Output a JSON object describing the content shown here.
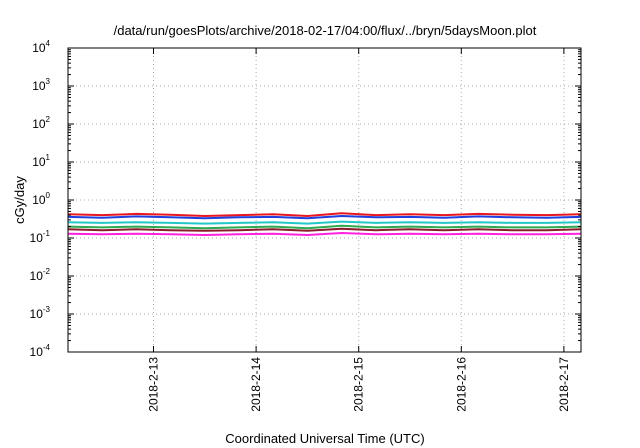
{
  "chart_data": {
    "type": "line",
    "title": "/data/run/goesPlots/archive/2018-02-17/04:00/flux/../bryn/5daysMoon.plot",
    "xlabel": "Coordinated Universal Time (UTC)",
    "ylabel": "cGy/day",
    "yscale": "log",
    "ylim": [
      0.0001,
      10000
    ],
    "xlim": [
      "2018-02-12 04:00",
      "2018-02-17 04:00"
    ],
    "grid": true,
    "x_ticks": [
      {
        "label": "2018-2-13",
        "value": "2018-02-13 00:00"
      },
      {
        "label": "2018-2-14",
        "value": "2018-02-14 00:00"
      },
      {
        "label": "2018-2-15",
        "value": "2018-02-15 00:00"
      },
      {
        "label": "2018-2-16",
        "value": "2018-02-16 00:00"
      },
      {
        "label": "2018-2-17",
        "value": "2018-02-17 00:00"
      }
    ],
    "y_ticks": [
      {
        "base": "10",
        "exp": "-4",
        "value": 0.0001
      },
      {
        "base": "10",
        "exp": "-3",
        "value": 0.001
      },
      {
        "base": "10",
        "exp": "-2",
        "value": 0.01
      },
      {
        "base": "10",
        "exp": "-1",
        "value": 0.1
      },
      {
        "base": "10",
        "exp": "0",
        "value": 1
      },
      {
        "base": "10",
        "exp": "1",
        "value": 10
      },
      {
        "base": "10",
        "exp": "2",
        "value": 100
      },
      {
        "base": "10",
        "exp": "3",
        "value": 1000
      },
      {
        "base": "10",
        "exp": "4",
        "value": 10000
      }
    ],
    "series": [
      {
        "color": "#e8161e",
        "x": [
          "2018-02-12 04:00",
          "2018-02-12 12:00",
          "2018-02-12 20:00",
          "2018-02-13 04:00",
          "2018-02-13 12:00",
          "2018-02-13 20:00",
          "2018-02-14 04:00",
          "2018-02-14 12:00",
          "2018-02-14 20:00",
          "2018-02-15 04:00",
          "2018-02-15 12:00",
          "2018-02-15 20:00",
          "2018-02-16 04:00",
          "2018-02-16 12:00",
          "2018-02-16 20:00",
          "2018-02-17 04:00"
        ],
        "values": [
          0.42,
          0.4,
          0.43,
          0.41,
          0.38,
          0.4,
          0.42,
          0.38,
          0.45,
          0.4,
          0.42,
          0.4,
          0.43,
          0.41,
          0.4,
          0.42
        ]
      },
      {
        "color": "#1f3fe0",
        "x": [
          "2018-02-12 04:00",
          "2018-02-12 12:00",
          "2018-02-12 20:00",
          "2018-02-13 04:00",
          "2018-02-13 12:00",
          "2018-02-13 20:00",
          "2018-02-14 04:00",
          "2018-02-14 12:00",
          "2018-02-14 20:00",
          "2018-02-15 04:00",
          "2018-02-15 12:00",
          "2018-02-15 20:00",
          "2018-02-16 04:00",
          "2018-02-16 12:00",
          "2018-02-16 20:00",
          "2018-02-17 04:00"
        ],
        "values": [
          0.36,
          0.34,
          0.37,
          0.35,
          0.33,
          0.35,
          0.36,
          0.33,
          0.38,
          0.35,
          0.36,
          0.34,
          0.37,
          0.35,
          0.34,
          0.36
        ]
      },
      {
        "color": "#22c8c8",
        "x": [
          "2018-02-12 04:00",
          "2018-02-12 12:00",
          "2018-02-12 20:00",
          "2018-02-13 04:00",
          "2018-02-13 12:00",
          "2018-02-13 20:00",
          "2018-02-14 04:00",
          "2018-02-14 12:00",
          "2018-02-14 20:00",
          "2018-02-15 04:00",
          "2018-02-15 12:00",
          "2018-02-15 20:00",
          "2018-02-16 04:00",
          "2018-02-16 12:00",
          "2018-02-16 20:00",
          "2018-02-17 04:00"
        ],
        "values": [
          0.26,
          0.25,
          0.26,
          0.25,
          0.24,
          0.25,
          0.26,
          0.24,
          0.27,
          0.25,
          0.26,
          0.25,
          0.26,
          0.25,
          0.25,
          0.26
        ]
      },
      {
        "color": "#2fa84f",
        "x": [
          "2018-02-12 04:00",
          "2018-02-12 12:00",
          "2018-02-12 20:00",
          "2018-02-13 04:00",
          "2018-02-13 12:00",
          "2018-02-13 20:00",
          "2018-02-14 04:00",
          "2018-02-14 12:00",
          "2018-02-14 20:00",
          "2018-02-15 04:00",
          "2018-02-15 12:00",
          "2018-02-15 20:00",
          "2018-02-16 04:00",
          "2018-02-16 12:00",
          "2018-02-16 20:00",
          "2018-02-17 04:00"
        ],
        "values": [
          0.2,
          0.19,
          0.2,
          0.19,
          0.18,
          0.19,
          0.2,
          0.18,
          0.21,
          0.19,
          0.2,
          0.19,
          0.2,
          0.19,
          0.19,
          0.2
        ]
      },
      {
        "color": "#8b1a2a",
        "x": [
          "2018-02-12 04:00",
          "2018-02-12 12:00",
          "2018-02-12 20:00",
          "2018-02-13 04:00",
          "2018-02-13 12:00",
          "2018-02-13 20:00",
          "2018-02-14 04:00",
          "2018-02-14 12:00",
          "2018-02-14 20:00",
          "2018-02-15 04:00",
          "2018-02-15 12:00",
          "2018-02-15 20:00",
          "2018-02-16 04:00",
          "2018-02-16 12:00",
          "2018-02-16 20:00",
          "2018-02-17 04:00"
        ],
        "values": [
          0.17,
          0.16,
          0.17,
          0.16,
          0.155,
          0.16,
          0.17,
          0.155,
          0.175,
          0.16,
          0.17,
          0.16,
          0.17,
          0.16,
          0.16,
          0.17
        ]
      },
      {
        "color": "#ff22dd",
        "x": [
          "2018-02-12 04:00",
          "2018-02-12 12:00",
          "2018-02-12 20:00",
          "2018-02-13 04:00",
          "2018-02-13 12:00",
          "2018-02-13 20:00",
          "2018-02-14 04:00",
          "2018-02-14 12:00",
          "2018-02-14 20:00",
          "2018-02-15 04:00",
          "2018-02-15 12:00",
          "2018-02-15 20:00",
          "2018-02-16 04:00",
          "2018-02-16 12:00",
          "2018-02-16 20:00",
          "2018-02-17 04:00"
        ],
        "values": [
          0.13,
          0.125,
          0.13,
          0.125,
          0.12,
          0.125,
          0.13,
          0.12,
          0.135,
          0.125,
          0.13,
          0.125,
          0.13,
          0.125,
          0.125,
          0.13
        ]
      }
    ]
  }
}
